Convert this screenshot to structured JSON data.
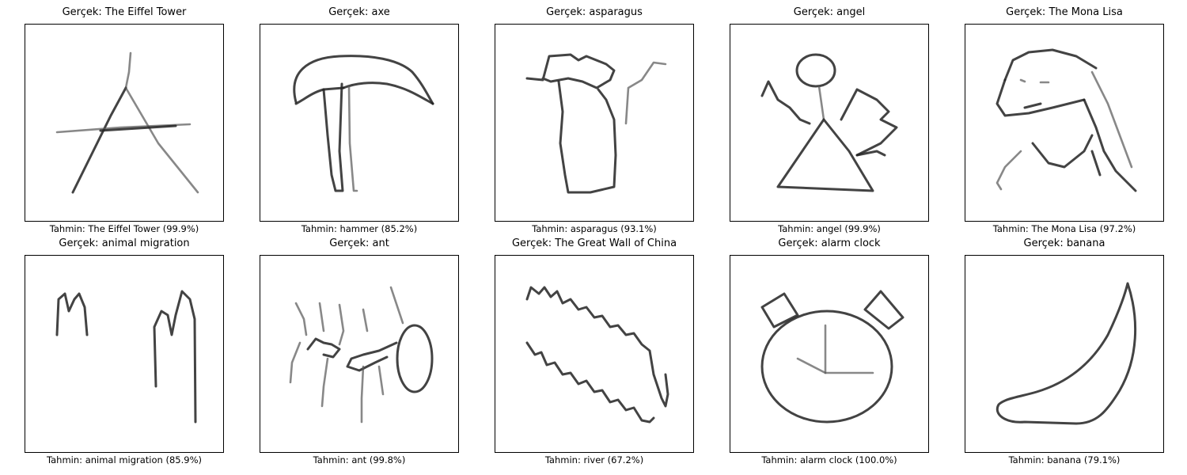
{
  "panels": [
    {
      "true_text": "Gerçek: The Eiffel Tower",
      "pred_text": "Tahmin: The Eiffel Tower (99.9%)",
      "drawing_icon": "eiffel-tower-sketch"
    },
    {
      "true_text": "Gerçek: axe",
      "pred_text": "Tahmin: hammer (85.2%)",
      "drawing_icon": "axe-sketch"
    },
    {
      "true_text": "Gerçek: asparagus",
      "pred_text": "Tahmin: asparagus (93.1%)",
      "drawing_icon": "asparagus-sketch"
    },
    {
      "true_text": "Gerçek: angel",
      "pred_text": "Tahmin: angel (99.9%)",
      "drawing_icon": "angel-sketch"
    },
    {
      "true_text": "Gerçek: The Mona Lisa",
      "pred_text": "Tahmin: The Mona Lisa (97.2%)",
      "drawing_icon": "mona-lisa-sketch"
    },
    {
      "true_text": "Gerçek: animal migration",
      "pred_text": "Tahmin: animal migration (85.9%)",
      "drawing_icon": "animal-migration-sketch"
    },
    {
      "true_text": "Gerçek: ant",
      "pred_text": "Tahmin: ant (99.8%)",
      "drawing_icon": "ant-sketch"
    },
    {
      "true_text": "Gerçek: The Great Wall of China",
      "pred_text": "Tahmin: river (67.2%)",
      "drawing_icon": "great-wall-sketch"
    },
    {
      "true_text": "Gerçek: alarm clock",
      "pred_text": "Tahmin: alarm clock (100.0%)",
      "drawing_icon": "alarm-clock-sketch"
    },
    {
      "true_text": "Gerçek: banana",
      "pred_text": "Tahmin: banana (79.1%)",
      "drawing_icon": "banana-sketch"
    }
  ]
}
